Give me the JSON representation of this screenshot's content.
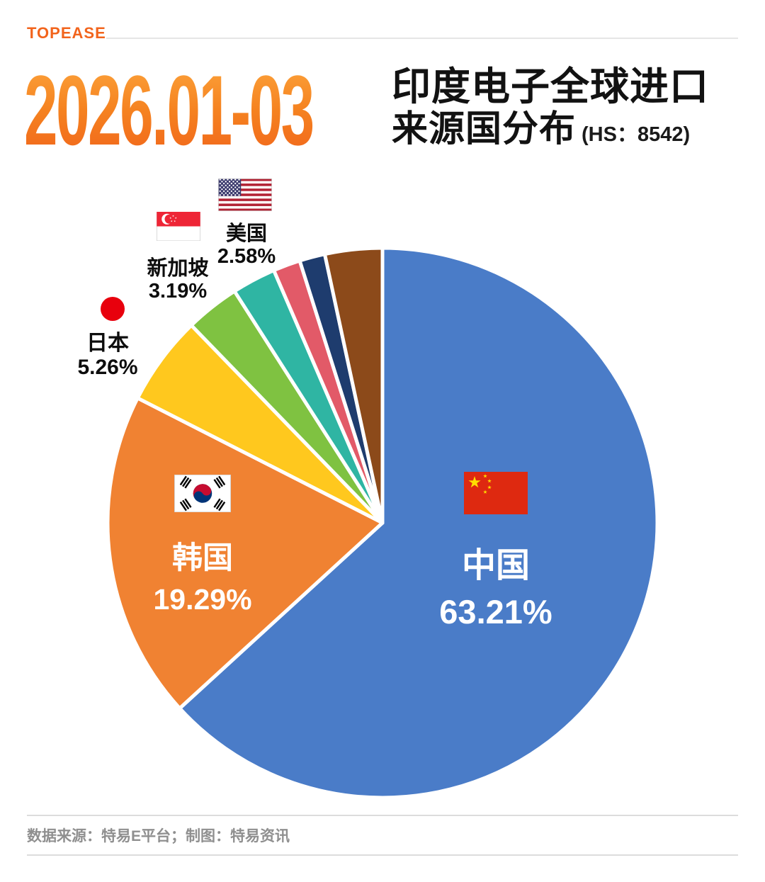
{
  "brand": "TOPEASE",
  "header": {
    "period": "2026.01-03",
    "title_line1": "印度电子全球进口",
    "title_line2": "来源国分布",
    "title_hs": "(HS：8542)"
  },
  "footer": {
    "text": "数据来源：特易E平台；制图：特易资讯"
  },
  "colors": {
    "accent_orange": "#F58220",
    "china_blue": "#4A7CC8",
    "korea_orange": "#F08232",
    "japan_yellow": "#FFC81E",
    "singapore_green": "#7FC241",
    "usa_teal": "#2FB5A3",
    "small_pink": "#E25A68",
    "small_navy": "#1E3C6E",
    "small_brown": "#8C4A1A"
  },
  "chart_data": {
    "type": "pie",
    "title": "2026.01-03 印度电子全球进口来源国分布（HS：8542）",
    "start_angle_deg": 0,
    "direction": "clockwise",
    "legend_position": "none",
    "slices": [
      {
        "label": "中国",
        "value": 63.21,
        "pct_label": "63.21%",
        "color": "#4A7CC8",
        "labeled": true
      },
      {
        "label": "韩国",
        "value": 19.29,
        "pct_label": "19.29%",
        "color": "#F08232",
        "labeled": true
      },
      {
        "label": "日本",
        "value": 5.26,
        "pct_label": "5.26%",
        "color": "#FFC81E",
        "labeled": true
      },
      {
        "label": "新加坡",
        "value": 3.19,
        "pct_label": "3.19%",
        "color": "#7FC241",
        "labeled": true
      },
      {
        "label": "美国",
        "value": 2.58,
        "pct_label": "2.58%",
        "color": "#2FB5A3",
        "labeled": true
      },
      {
        "label": "",
        "value": 1.6,
        "pct_label": "",
        "color": "#E25A68",
        "labeled": false
      },
      {
        "label": "",
        "value": 1.5,
        "pct_label": "",
        "color": "#1E3C6E",
        "labeled": false
      },
      {
        "label": "",
        "value": 3.37,
        "pct_label": "",
        "color": "#8C4A1A",
        "labeled": false
      }
    ]
  }
}
